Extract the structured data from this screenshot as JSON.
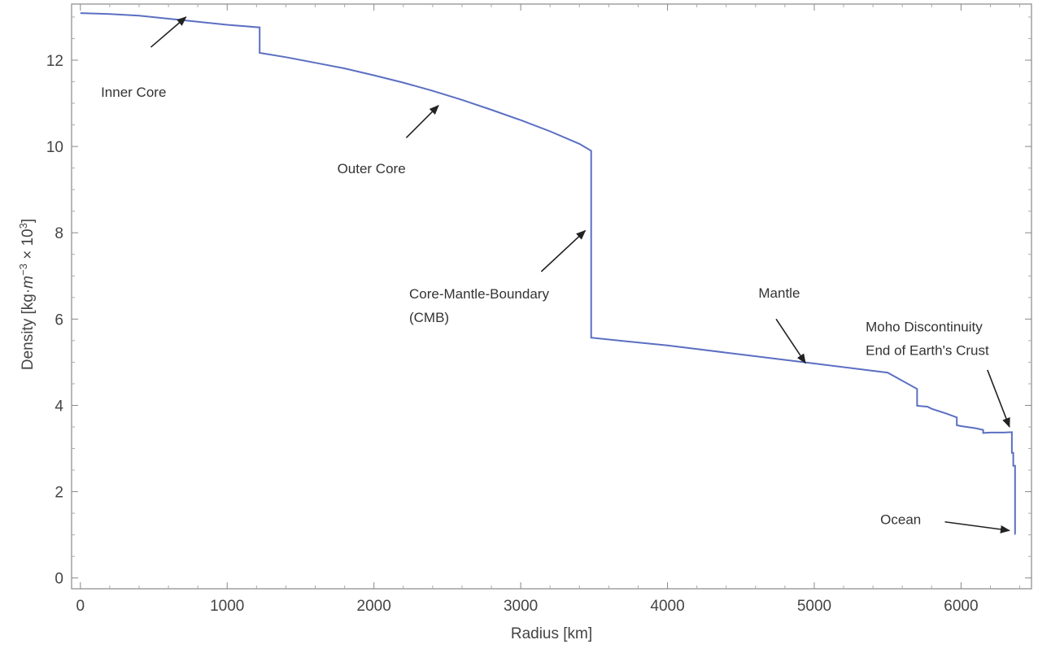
{
  "chart_data": {
    "type": "line",
    "title": "",
    "xlabel": "Radius [km]",
    "ylabel": {
      "prefix": "Density [kg·",
      "m": "m",
      "exp_neg3": "−3",
      "times": " × 10",
      "exp3": "3",
      "suffix": "]"
    },
    "xlim": [
      -60,
      6480
    ],
    "ylim": [
      -0.25,
      13.3
    ],
    "xticks": [
      0,
      1000,
      2000,
      3000,
      4000,
      5000,
      6000
    ],
    "yticks": [
      0,
      2,
      4,
      6,
      8,
      10,
      12
    ],
    "grid": false,
    "legend": "none",
    "colors": {
      "line": "#5b6fc2",
      "frame": "#888888",
      "arrow": "#222222"
    },
    "series": [
      {
        "x": [
          0,
          200,
          400,
          600,
          800,
          1000,
          1221.5,
          1221.5,
          1400,
          1600,
          1800,
          2000,
          2200,
          2400,
          2600,
          2800,
          3000,
          3200,
          3400,
          3480,
          3480,
          3700,
          4000,
          4500,
          5000,
          5500,
          5701,
          5701,
          5771,
          5800,
          5900,
          5971,
          5971,
          6000,
          6100,
          6151,
          6151,
          6200,
          6291,
          6346.6,
          6346.6,
          6356,
          6356,
          6368,
          6368,
          6371
        ],
        "y": [
          13.09,
          13.07,
          13.03,
          12.96,
          12.89,
          12.82,
          12.76,
          12.17,
          12.07,
          11.94,
          11.81,
          11.65,
          11.48,
          11.29,
          11.08,
          10.85,
          10.61,
          10.35,
          10.06,
          9.9,
          5.57,
          5.49,
          5.39,
          5.18,
          4.97,
          4.76,
          4.38,
          3.99,
          3.97,
          3.92,
          3.81,
          3.72,
          3.54,
          3.52,
          3.47,
          3.43,
          3.36,
          3.37,
          3.37,
          3.38,
          2.9,
          2.9,
          2.6,
          2.6,
          1.02,
          1.02
        ]
      }
    ],
    "annotations": [
      {
        "lines": [
          "Inner Core"
        ],
        "text_x": 140,
        "text_y": 11.15,
        "arrow_from": [
          480,
          12.3
        ],
        "arrow_to": [
          720,
          13.0
        ]
      },
      {
        "lines": [
          "Outer Core"
        ],
        "text_x": 1750,
        "text_y": 9.38,
        "arrow_from": [
          2220,
          10.2
        ],
        "arrow_to": [
          2440,
          10.95
        ]
      },
      {
        "lines": [
          "Core-Mantle-Boundary",
          "(CMB)"
        ],
        "text_x": 2240,
        "text_y": 6.48,
        "arrow_from": [
          3140,
          7.1
        ],
        "arrow_to": [
          3440,
          8.05
        ]
      },
      {
        "lines": [
          "Mantle"
        ],
        "text_x": 4620,
        "text_y": 6.5,
        "arrow_from": [
          4740,
          6.0
        ],
        "arrow_to": [
          4940,
          4.98
        ]
      },
      {
        "lines": [
          "Moho Discontinuity",
          "End of Earth's Crust"
        ],
        "text_x": 5350,
        "text_y": 5.71,
        "arrow_from": [
          6180,
          4.82
        ],
        "arrow_to": [
          6330,
          3.5
        ]
      },
      {
        "lines": [
          "Ocean"
        ],
        "text_x": 5450,
        "text_y": 1.25,
        "arrow_from": [
          5890,
          1.3
        ],
        "arrow_to": [
          6330,
          1.1
        ]
      }
    ]
  }
}
